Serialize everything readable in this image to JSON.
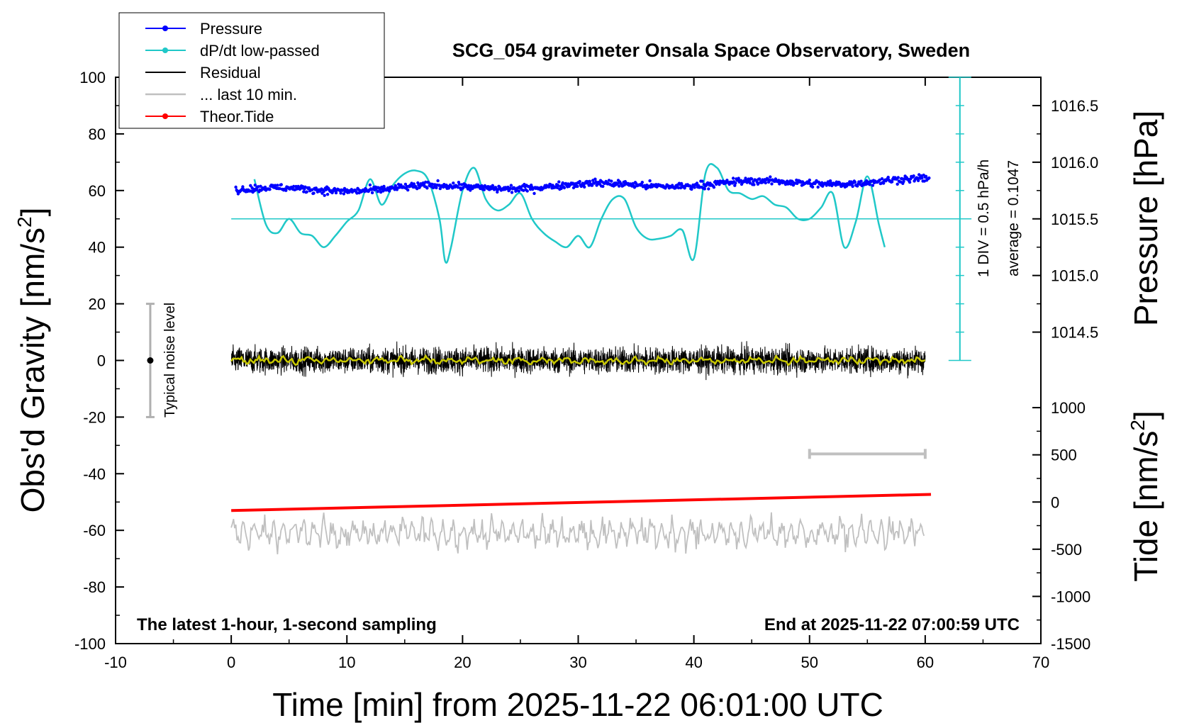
{
  "chart_data": {
    "type": "line",
    "title": "SCG_054 gravimeter Onsala Space Observatory, Sweden",
    "xlabel": "Time [min] from 2025-11-22 06:01:00 UTC",
    "ylabel": "Obs'd Gravity [nm/s",
    "ylabel_sup": "2",
    "ylabel_end": "]",
    "xlim": [
      -10,
      70
    ],
    "ylim": [
      -100,
      100
    ],
    "x_ticks": [
      "-10",
      "0",
      "10",
      "20",
      "30",
      "40",
      "50",
      "60",
      "70"
    ],
    "x_tick_values": [
      -10,
      0,
      10,
      20,
      30,
      40,
      50,
      60,
      70
    ],
    "y_ticks": [
      "100",
      "80",
      "60",
      "40",
      "20",
      "0",
      "-20",
      "-40",
      "-60",
      "-80",
      "-100"
    ],
    "y_tick_values": [
      100,
      80,
      60,
      40,
      20,
      0,
      -20,
      -40,
      -60,
      -80,
      -100
    ],
    "pressure_axis": {
      "label": "Pressure [hPa]",
      "ticks": [
        "1016.5",
        "1016.0",
        "1015.5",
        "1015.0",
        "1014.5"
      ],
      "tick_values": [
        1016.5,
        1016.0,
        1015.5,
        1015.0,
        1014.5
      ],
      "gravity_at_1015_5": 50,
      "gravity_per_hpa": 40
    },
    "tide_axis": {
      "label": "Tide [nm/s",
      "label_sup": "2",
      "label_end": "]",
      "ticks": [
        "1000",
        "500",
        "0",
        "-500",
        "-1000",
        "-1500"
      ],
      "tick_values": [
        1000,
        500,
        0,
        -500,
        -1000,
        -1500
      ],
      "gravity_at_tide_0": -50,
      "gravity_per_tide_unit": 0.03333
    },
    "dpdt_scale": {
      "div_label": "1 DIV = 0.5 hPa/h",
      "average_label": "average = 0.1047",
      "baseline_gravity": 50
    },
    "noise_bar": {
      "label": "Typical noise level",
      "x": -7,
      "center": 0,
      "low": -20,
      "high": 20
    },
    "ten_min_bar": {
      "x_start": 50,
      "x_end": 60,
      "y": -33
    },
    "series": [
      {
        "name": "Pressure",
        "color": "#0000ff",
        "style": "dots",
        "x_range": [
          0.4,
          60.4
        ],
        "level_start": 60,
        "level_end": 63.5,
        "scatter": 1.8
      },
      {
        "name": "dP/dt low-passed",
        "color": "#20c8c8",
        "style": "line",
        "x": [
          2,
          3,
          4,
          5,
          6,
          7,
          8,
          9,
          10,
          11,
          12,
          13,
          14,
          15,
          16,
          17,
          18,
          18.5,
          19,
          20,
          21,
          22,
          23,
          24,
          25,
          26,
          27,
          28,
          29,
          30,
          31,
          32,
          33,
          34,
          35,
          36,
          37,
          38,
          39,
          40,
          41,
          42,
          43,
          44,
          45,
          46,
          47,
          48,
          49,
          50,
          51,
          52,
          53,
          54,
          55,
          56,
          56.5
        ],
        "y": [
          64,
          48,
          45,
          50,
          45,
          44,
          40,
          44,
          49,
          53,
          64,
          55,
          62,
          66,
          67,
          64,
          50,
          35,
          40,
          60,
          68,
          57,
          53,
          55,
          59,
          50,
          45,
          42,
          40,
          44,
          40,
          50,
          57,
          57,
          47,
          43,
          43,
          44,
          46,
          36,
          66,
          68,
          60,
          59,
          57,
          58,
          55,
          54,
          50,
          50,
          54,
          59,
          40,
          49,
          65,
          48,
          40
        ]
      },
      {
        "name": "Residual",
        "color": "#000000",
        "style": "noise",
        "x_range": [
          0,
          60
        ],
        "amplitude": 6
      },
      {
        "name": "... last 10 min.",
        "color": "#c0c0c0",
        "style": "noise-line",
        "x_range": [
          0,
          60
        ],
        "center": -61,
        "amplitude": 5
      },
      {
        "name": "Theor.Tide",
        "color": "#ff0000",
        "style": "line",
        "x": [
          0,
          60.5
        ],
        "y": [
          -53,
          -47.3
        ]
      },
      {
        "name": "smoothed residual",
        "color": "#c8c800",
        "style": "smooth",
        "x_range": [
          0,
          60
        ],
        "amplitude": 1.2,
        "in_legend": false
      }
    ],
    "legend": [
      {
        "name": "Pressure",
        "color": "#0000ff",
        "marker": true
      },
      {
        "name": "dP/dt low-passed",
        "color": "#20c8c8",
        "marker": true
      },
      {
        "name": "Residual",
        "color": "#000000",
        "marker": false
      },
      {
        "name": "... last 10 min.",
        "color": "#c0c0c0",
        "marker": false
      },
      {
        "name": "Theor.Tide",
        "color": "#ff0000",
        "marker": true
      }
    ],
    "annotations": {
      "left_bottom": "The latest 1-hour, 1-second sampling",
      "right_bottom": "End at 2025-11-22 07:00:59 UTC"
    }
  }
}
